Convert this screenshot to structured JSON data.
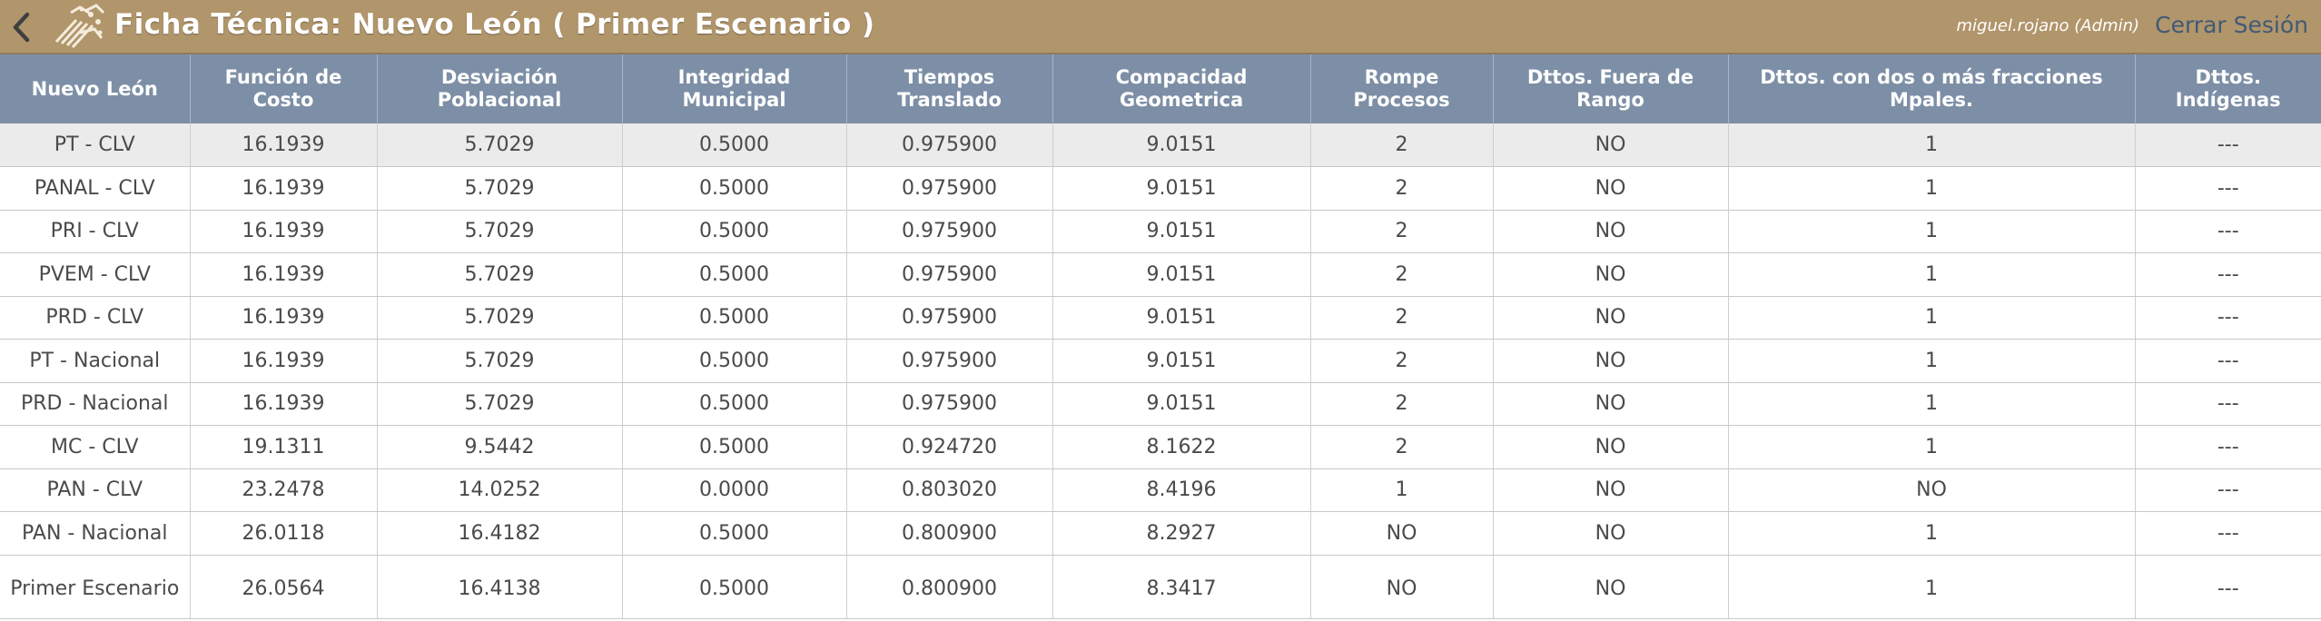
{
  "header": {
    "title": "Ficha Técnica: Nuevo León ( Primer Escenario )",
    "user": "miguel.rojano (Admin)",
    "logout_label": "Cerrar Sesión",
    "back_icon": "chevron-left-icon",
    "logo_icon": "logo-emblem-icon"
  },
  "colors": {
    "topbar": "#b1956b",
    "table_header": "#7d8fa6",
    "logout_link": "#3f5a76",
    "highlight_row": "#ebebeb"
  },
  "table": {
    "columns": [
      "Nuevo León",
      "Función de Costo",
      "Desviación Poblacional",
      "Integridad Municipal",
      "Tiempos Translado",
      "Compacidad Geometrica",
      "Rompe Procesos",
      "Dttos. Fuera de Rango",
      "Dttos. con dos o más fracciones Mpales.",
      "Dttos. Indígenas"
    ],
    "rows": [
      [
        "PT - CLV",
        "16.1939",
        "5.7029",
        "0.5000",
        "0.975900",
        "9.0151",
        "2",
        "NO",
        "1",
        "---"
      ],
      [
        "PANAL - CLV",
        "16.1939",
        "5.7029",
        "0.5000",
        "0.975900",
        "9.0151",
        "2",
        "NO",
        "1",
        "---"
      ],
      [
        "PRI - CLV",
        "16.1939",
        "5.7029",
        "0.5000",
        "0.975900",
        "9.0151",
        "2",
        "NO",
        "1",
        "---"
      ],
      [
        "PVEM - CLV",
        "16.1939",
        "5.7029",
        "0.5000",
        "0.975900",
        "9.0151",
        "2",
        "NO",
        "1",
        "---"
      ],
      [
        "PRD - CLV",
        "16.1939",
        "5.7029",
        "0.5000",
        "0.975900",
        "9.0151",
        "2",
        "NO",
        "1",
        "---"
      ],
      [
        "PT - Nacional",
        "16.1939",
        "5.7029",
        "0.5000",
        "0.975900",
        "9.0151",
        "2",
        "NO",
        "1",
        "---"
      ],
      [
        "PRD - Nacional",
        "16.1939",
        "5.7029",
        "0.5000",
        "0.975900",
        "9.0151",
        "2",
        "NO",
        "1",
        "---"
      ],
      [
        "MC - CLV",
        "19.1311",
        "9.5442",
        "0.5000",
        "0.924720",
        "8.1622",
        "2",
        "NO",
        "1",
        "---"
      ],
      [
        "PAN - CLV",
        "23.2478",
        "14.0252",
        "0.0000",
        "0.803020",
        "8.4196",
        "1",
        "NO",
        "NO",
        "---"
      ],
      [
        "PAN - Nacional",
        "26.0118",
        "16.4182",
        "0.5000",
        "0.800900",
        "8.2927",
        "NO",
        "NO",
        "1",
        "---"
      ],
      [
        "Primer Escenario",
        "26.0564",
        "16.4138",
        "0.5000",
        "0.800900",
        "8.3417",
        "NO",
        "NO",
        "1",
        "---"
      ]
    ]
  }
}
